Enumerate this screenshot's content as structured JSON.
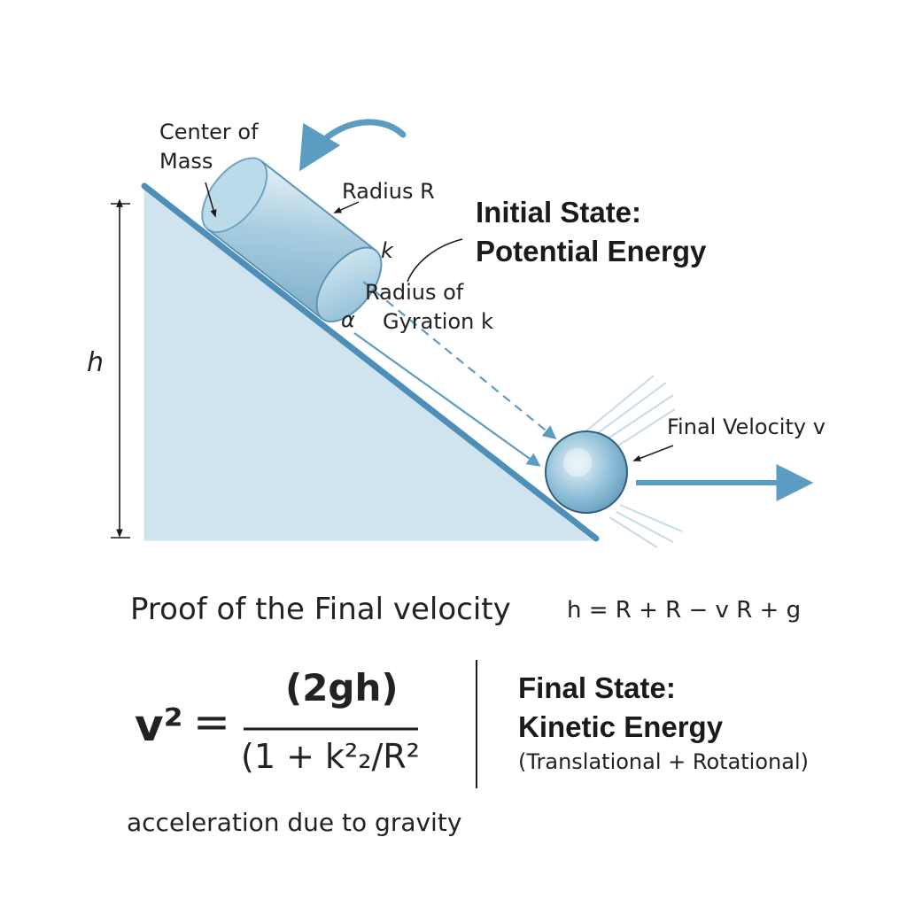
{
  "colors": {
    "incline_fill": "#cfe4ee",
    "incline_edge": "#4d8fb8",
    "arrow": "#5b9dc2",
    "dark": "#1a1a1a"
  },
  "icons": {
    "rotation_arrow": "curved-arrow-icon",
    "velocity_arrow": "right-arrow-icon"
  },
  "labels": {
    "center_of_mass_line1": "Center of",
    "center_of_mass_line2": "Mass",
    "radius_r": "Radius R",
    "k": "k",
    "radius_of_gyration_line1": "Radius of",
    "radius_of_gyration_line2": "Gyration k",
    "alpha": "α",
    "h": "h",
    "final_velocity": "Final Velocity v"
  },
  "initial_state": {
    "line1": "Initial State:",
    "line2": "Potential Energy"
  },
  "proof": {
    "title": "Proof of the Final velocity",
    "equation_h": "h = R + R − v   R + g"
  },
  "formula": {
    "lhs": "v²",
    "equals": "=",
    "numerator": "(2gh)",
    "denominator": "(1 + k²₂/R²"
  },
  "final_state": {
    "line1": "Final State:",
    "line2": "Kinetic Energy",
    "line3": "(Translational + Rotational)"
  },
  "gravity_note": "acceleration due to gravity"
}
